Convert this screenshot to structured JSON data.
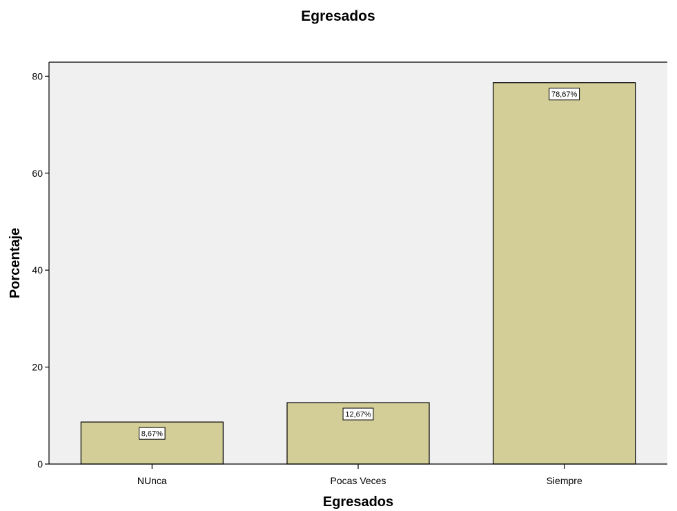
{
  "chart_data": {
    "type": "bar",
    "title": "Egresados",
    "xlabel": "Egresados",
    "ylabel": "Porcentaje",
    "categories": [
      "NUnca",
      "Pocas Veces",
      "Siempre"
    ],
    "values": [
      8.67,
      12.67,
      78.67
    ],
    "data_labels": [
      "8,67%",
      "12,67%",
      "78,67%"
    ],
    "yticks": [
      0,
      20,
      40,
      60,
      80
    ],
    "ylim": [
      0,
      84.4
    ],
    "grid": false,
    "legend": "none",
    "colors": {
      "bar_fill": "#d3ce97",
      "bar_stroke": "#000000",
      "plot_background": "#f0f0f0",
      "axis": "#000000"
    }
  }
}
